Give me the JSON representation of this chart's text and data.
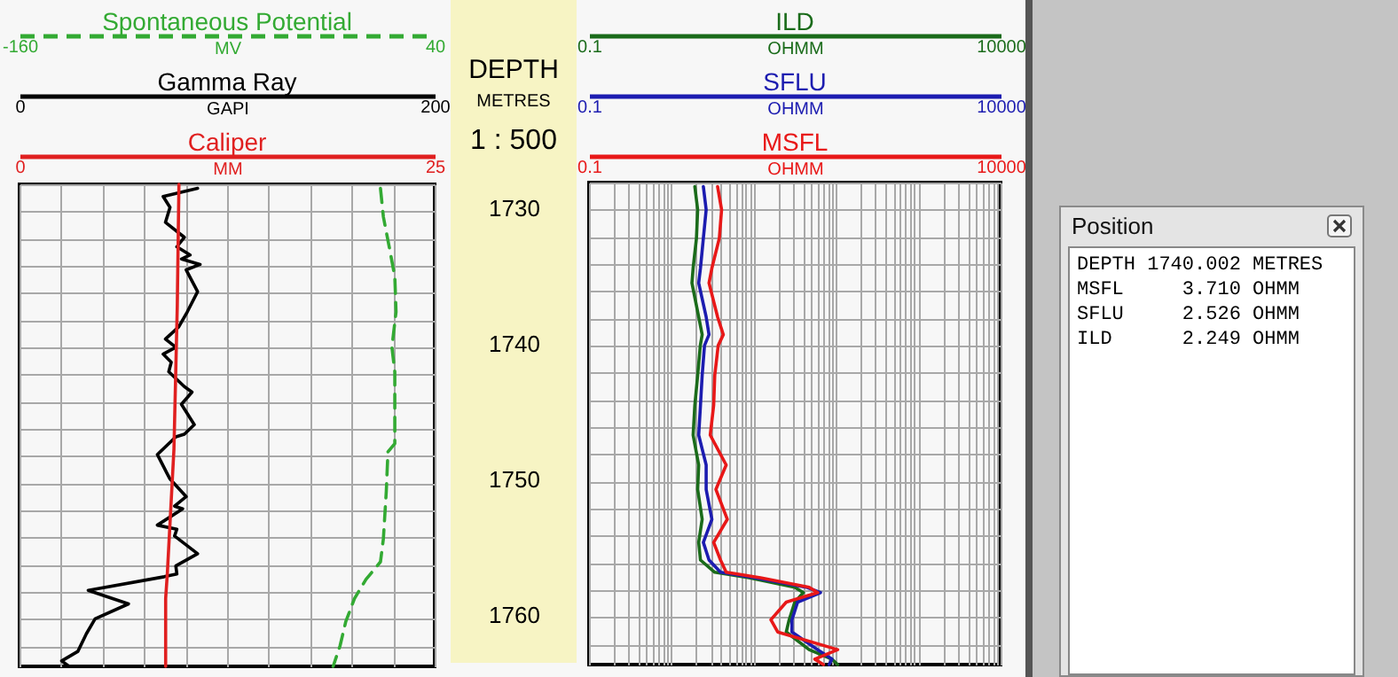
{
  "chart_data": [
    {
      "type": "line",
      "line_style": "dashed",
      "series": [
        {
          "name": "Spontaneous Potential",
          "color": "#33aa33",
          "x": [
            13.9,
            15.3,
            18.1,
            20.8,
            21.4,
            19.4,
            20.8,
            20.8,
            17.5,
            16.7,
            15.3,
            13.9,
            6.9,
            1.4,
            -2.8,
            -5.6,
            -8.9
          ],
          "values": [
            1728.3,
            1730.4,
            1732.6,
            1734.8,
            1737.4,
            1740.0,
            1741.8,
            1747.1,
            1747.7,
            1750.6,
            1754.1,
            1755.8,
            1757.1,
            1758.5,
            1760.2,
            1762.0,
            1763.5
          ]
        }
      ],
      "xlabel": "MV",
      "xlim": [
        -160,
        40
      ],
      "xticks": [
        -160,
        40
      ],
      "ylim": [
        1763.5,
        1728
      ],
      "yticks": [
        {
          "value": 1728,
          "label": null
        },
        {
          "value": 1730,
          "label": null
        },
        {
          "value": 1732,
          "label": null
        },
        {
          "value": 1734,
          "label": null
        },
        {
          "value": 1736,
          "label": null
        },
        {
          "value": 1738,
          "label": null
        },
        {
          "value": 1740,
          "label": null
        },
        {
          "value": 1742,
          "label": null
        },
        {
          "value": 1744,
          "label": null
        },
        {
          "value": 1746,
          "label": null
        },
        {
          "value": 1748,
          "label": null
        },
        {
          "value": 1750,
          "label": null
        },
        {
          "value": 1752,
          "label": null
        },
        {
          "value": 1754,
          "label": null
        },
        {
          "value": 1756,
          "label": null
        },
        {
          "value": 1758,
          "label": null
        },
        {
          "value": 1760,
          "label": null
        },
        {
          "value": 1762,
          "label": null
        }
      ],
      "grid": "y",
      "tick_labels": "x"
    },
    {
      "type": "line",
      "series": [
        {
          "name": "Gamma Ray",
          "color": "#000000",
          "x": [
            85.8,
            69.2,
            72.5,
            70.3,
            79.4,
            75.8,
            82.2,
            78.0,
            87.0,
            80.3,
            85.8,
            80.8,
            76.7,
            70.3,
            75.3,
            69.2,
            73.1,
            71.9,
            79.4,
            83.1,
            78.0,
            84.2,
            79.4,
            75.3,
            66.4,
            71.1,
            72.5,
            80.3,
            74.7,
            78.6,
            66.4,
            75.8,
            74.7,
            85.8,
            75.3,
            75.8,
            69.7,
            33.1,
            52.5,
            36.4,
            32.2,
            28.1,
            20.3,
            23.9
          ],
          "values": [
            1728.3,
            1728.9,
            1729.7,
            1730.8,
            1731.9,
            1732.6,
            1733.2,
            1733.5,
            1733.9,
            1734.3,
            1735.9,
            1737.4,
            1738.5,
            1739.4,
            1740.0,
            1740.5,
            1741.1,
            1741.8,
            1742.9,
            1743.3,
            1744.2,
            1745.7,
            1746.4,
            1746.6,
            1747.9,
            1749.3,
            1749.7,
            1751.0,
            1751.7,
            1751.9,
            1753.1,
            1753.4,
            1753.9,
            1755.2,
            1756.1,
            1756.7,
            1756.9,
            1757.9,
            1758.9,
            1760.0,
            1761.1,
            1762.4,
            1763.1,
            1763.5
          ]
        }
      ],
      "xlabel": "GAPI",
      "xlim": [
        0,
        200
      ],
      "xticks": [
        0,
        {
          "value": 20,
          "label": null
        },
        {
          "value": 40,
          "label": null
        },
        {
          "value": 60,
          "label": null
        },
        {
          "value": 80,
          "label": null
        },
        {
          "value": 100,
          "label": null
        },
        {
          "value": 120,
          "label": null
        },
        {
          "value": 140,
          "label": null
        },
        {
          "value": 160,
          "label": null
        },
        {
          "value": 180,
          "label": null
        },
        200
      ],
      "ylabel": "DEPTH",
      "annotations": [
        "METRES",
        "1 : 500"
      ],
      "ylim": [
        1763.5,
        1728
      ],
      "yticks": [
        {
          "value": 1728,
          "label": null
        },
        1730,
        {
          "value": 1732,
          "label": null
        },
        {
          "value": 1734,
          "label": null
        },
        {
          "value": 1736,
          "label": null
        },
        {
          "value": 1738,
          "label": null
        },
        1740,
        {
          "value": 1742,
          "label": null
        },
        {
          "value": 1744,
          "label": null
        },
        {
          "value": 1746,
          "label": null
        },
        {
          "value": 1748,
          "label": null
        },
        1750,
        {
          "value": 1752,
          "label": null
        },
        {
          "value": 1754,
          "label": null
        },
        {
          "value": 1756,
          "label": null
        },
        {
          "value": 1758,
          "label": null
        },
        1760,
        {
          "value": 1762,
          "label": null
        }
      ],
      "grid": true
    },
    {
      "type": "line",
      "series": [
        {
          "name": "Caliper",
          "color": "#e02020",
          "x": [
            9.6,
            9.5,
            9.3,
            8.9,
            8.8,
            8.8
          ],
          "values": [
            1728.0,
            1737.0,
            1747.5,
            1756.7,
            1758.5,
            1763.5
          ]
        }
      ],
      "xlabel": "MM",
      "xlim": [
        0,
        25
      ],
      "xticks": [
        0,
        25
      ],
      "ylim": [
        1763.5,
        1728
      ],
      "yticks": [
        {
          "value": 1728,
          "label": null
        },
        {
          "value": 1730,
          "label": null
        },
        {
          "value": 1732,
          "label": null
        },
        {
          "value": 1734,
          "label": null
        },
        {
          "value": 1736,
          "label": null
        },
        {
          "value": 1738,
          "label": null
        },
        {
          "value": 1740,
          "label": null
        },
        {
          "value": 1742,
          "label": null
        },
        {
          "value": 1744,
          "label": null
        },
        {
          "value": 1746,
          "label": null
        },
        {
          "value": 1748,
          "label": null
        },
        {
          "value": 1750,
          "label": null
        },
        {
          "value": 1752,
          "label": null
        },
        {
          "value": 1754,
          "label": null
        },
        {
          "value": 1756,
          "label": null
        },
        {
          "value": 1758,
          "label": null
        },
        {
          "value": 1760,
          "label": null
        },
        {
          "value": 1762,
          "label": null
        }
      ],
      "grid": "y",
      "tick_labels": "x"
    },
    {
      "type": "line",
      "log": "x",
      "series": [
        {
          "name": "ILD",
          "color": "#1a6b1a",
          "x": [
            1.93,
            2.09,
            2.02,
            1.84,
            1.78,
            2.15,
            2.37,
            2.25,
            2.09,
            1.93,
            1.84,
            2.15,
            2.09,
            2.37,
            2.15,
            2.26,
            3.37,
            8.8,
            31.6,
            40.2,
            31.6,
            27.0,
            24.9,
            47.2,
            89.4,
            105
          ],
          "values": [
            1728.3,
            1730.0,
            1732.1,
            1734.3,
            1735.4,
            1737.9,
            1739.2,
            1740.0,
            1742.2,
            1744.4,
            1746.6,
            1748.8,
            1750.6,
            1752.8,
            1754.5,
            1755.8,
            1756.7,
            1757.1,
            1757.8,
            1758.2,
            1758.9,
            1760.2,
            1761.1,
            1762.4,
            1763.1,
            1763.5
          ]
        }
      ],
      "xlabel": "OHMM",
      "xlim": [
        0.1,
        10000
      ],
      "xticks": [
        0.1,
        {
          "value": 0.2,
          "label": null
        },
        {
          "value": 0.3,
          "label": null
        },
        {
          "value": 0.4,
          "label": null
        },
        {
          "value": 0.5,
          "label": null
        },
        {
          "value": 0.6,
          "label": null
        },
        {
          "value": 0.7,
          "label": null
        },
        {
          "value": 0.8,
          "label": null
        },
        {
          "value": 0.9,
          "label": null
        },
        {
          "value": 1,
          "label": null
        },
        {
          "value": 2,
          "label": null
        },
        {
          "value": 3,
          "label": null
        },
        {
          "value": 4,
          "label": null
        },
        {
          "value": 5,
          "label": null
        },
        {
          "value": 6,
          "label": null
        },
        {
          "value": 7,
          "label": null
        },
        {
          "value": 8,
          "label": null
        },
        {
          "value": 9,
          "label": null
        },
        {
          "value": 10,
          "label": null
        },
        {
          "value": 20,
          "label": null
        },
        {
          "value": 30,
          "label": null
        },
        {
          "value": 40,
          "label": null
        },
        {
          "value": 50,
          "label": null
        },
        {
          "value": 60,
          "label": null
        },
        {
          "value": 70,
          "label": null
        },
        {
          "value": 80,
          "label": null
        },
        {
          "value": 90,
          "label": null
        },
        {
          "value": 100,
          "label": null
        },
        {
          "value": 200,
          "label": null
        },
        {
          "value": 300,
          "label": null
        },
        {
          "value": 400,
          "label": null
        },
        {
          "value": 500,
          "label": null
        },
        {
          "value": 600,
          "label": null
        },
        {
          "value": 700,
          "label": null
        },
        {
          "value": 800,
          "label": null
        },
        {
          "value": 900,
          "label": null
        },
        {
          "value": 1000,
          "label": null
        },
        {
          "value": 2000,
          "label": null
        },
        {
          "value": 3000,
          "label": null
        },
        {
          "value": 4000,
          "label": null
        },
        {
          "value": 5000,
          "label": null
        },
        {
          "value": 6000,
          "label": null
        },
        {
          "value": 7000,
          "label": null
        },
        {
          "value": 8000,
          "label": null
        },
        {
          "value": 9000,
          "label": null
        },
        10000
      ],
      "ylim": [
        1763.5,
        1728
      ],
      "yticks": [
        {
          "value": 1728,
          "label": null
        },
        {
          "value": 1730,
          "label": null
        },
        {
          "value": 1732,
          "label": null
        },
        {
          "value": 1734,
          "label": null
        },
        {
          "value": 1736,
          "label": null
        },
        {
          "value": 1738,
          "label": null
        },
        {
          "value": 1740,
          "label": null
        },
        {
          "value": 1742,
          "label": null
        },
        {
          "value": 1744,
          "label": null
        },
        {
          "value": 1746,
          "label": null
        },
        {
          "value": 1748,
          "label": null
        },
        {
          "value": 1750,
          "label": null
        },
        {
          "value": 1752,
          "label": null
        },
        {
          "value": 1754,
          "label": null
        },
        {
          "value": 1756,
          "label": null
        },
        {
          "value": 1758,
          "label": null
        },
        {
          "value": 1760,
          "label": null
        },
        {
          "value": 1762,
          "label": null
        }
      ],
      "grid": true,
      "tick_labels": "x"
    },
    {
      "type": "line",
      "log": "x",
      "series": [
        {
          "name": "SFLU",
          "color": "#1c1cb0",
          "x": [
            2.45,
            2.65,
            2.45,
            2.26,
            2.15,
            2.65,
            2.87,
            2.53,
            2.37,
            2.26,
            2.15,
            2.65,
            2.65,
            3.11,
            2.45,
            2.87,
            3.96,
            10.3,
            43.5,
            64.9,
            34.2,
            29.2,
            29.2,
            60.0,
            89.4,
            82.5
          ],
          "values": [
            1728.3,
            1730.0,
            1732.1,
            1734.3,
            1735.4,
            1737.9,
            1739.2,
            1740.0,
            1742.2,
            1744.4,
            1746.6,
            1748.8,
            1750.6,
            1752.8,
            1754.5,
            1755.8,
            1756.7,
            1757.1,
            1757.8,
            1758.2,
            1758.9,
            1760.2,
            1761.1,
            1762.4,
            1763.1,
            1763.5
          ]
        }
      ],
      "xlabel": "OHMM",
      "xlim": [
        0.1,
        10000
      ],
      "xticks": [
        0.1,
        10000
      ],
      "ylim": [
        1763.5,
        1728
      ],
      "yticks": [
        {
          "value": 1728,
          "label": null
        },
        {
          "value": 1730,
          "label": null
        },
        {
          "value": 1732,
          "label": null
        },
        {
          "value": 1734,
          "label": null
        },
        {
          "value": 1736,
          "label": null
        },
        {
          "value": 1738,
          "label": null
        },
        {
          "value": 1740,
          "label": null
        },
        {
          "value": 1742,
          "label": null
        },
        {
          "value": 1744,
          "label": null
        },
        {
          "value": 1746,
          "label": null
        },
        {
          "value": 1748,
          "label": null
        },
        {
          "value": 1750,
          "label": null
        },
        {
          "value": 1752,
          "label": null
        },
        {
          "value": 1754,
          "label": null
        },
        {
          "value": 1756,
          "label": null
        },
        {
          "value": 1758,
          "label": null
        },
        {
          "value": 1760,
          "label": null
        },
        {
          "value": 1762,
          "label": null
        }
      ],
      "grid": "y",
      "tick_labels": "x"
    },
    {
      "type": "line",
      "log": "x",
      "series": [
        {
          "name": "MSFL",
          "color": "#e81818",
          "x": [
            3.65,
            4.08,
            3.83,
            3.11,
            2.87,
            3.65,
            4.28,
            3.71,
            3.37,
            3.27,
            2.97,
            4.64,
            3.48,
            4.79,
            3.27,
            3.96,
            4.64,
            12.1,
            47.2,
            60.0,
            24.9,
            16.2,
            19.6,
            105,
            55.3,
            70.4
          ],
          "values": [
            1728.3,
            1730.0,
            1732.1,
            1734.3,
            1735.4,
            1737.9,
            1739.2,
            1740.0,
            1742.2,
            1744.4,
            1746.6,
            1748.8,
            1750.6,
            1752.8,
            1754.5,
            1755.8,
            1756.7,
            1757.1,
            1757.8,
            1758.2,
            1758.9,
            1760.2,
            1761.1,
            1762.4,
            1763.1,
            1763.5
          ]
        }
      ],
      "xlabel": "OHMM",
      "xlim": [
        0.1,
        10000
      ],
      "xticks": [
        0.1,
        10000
      ],
      "ylim": [
        1763.5,
        1728
      ],
      "yticks": [
        {
          "value": 1728,
          "label": null
        },
        {
          "value": 1730,
          "label": null
        },
        {
          "value": 1732,
          "label": null
        },
        {
          "value": 1734,
          "label": null
        },
        {
          "value": 1736,
          "label": null
        },
        {
          "value": 1738,
          "label": null
        },
        {
          "value": 1740,
          "label": null
        },
        {
          "value": 1742,
          "label": null
        },
        {
          "value": 1744,
          "label": null
        },
        {
          "value": 1746,
          "label": null
        },
        {
          "value": 1748,
          "label": null
        },
        {
          "value": 1750,
          "label": null
        },
        {
          "value": 1752,
          "label": null
        },
        {
          "value": 1754,
          "label": null
        },
        {
          "value": 1756,
          "label": null
        },
        {
          "value": 1758,
          "label": null
        },
        {
          "value": 1760,
          "label": null
        },
        {
          "value": 1762,
          "label": null
        }
      ],
      "grid": "y",
      "tick_labels": "x"
    },
    {
      "type": "other",
      "title": "Position",
      "annotations": [
        "DEPTH 1740.002 METRES",
        "MSFL     3.710 OHMM",
        "SFLU     2.526 OHMM",
        "ILD      2.249 OHMM"
      ]
    }
  ]
}
